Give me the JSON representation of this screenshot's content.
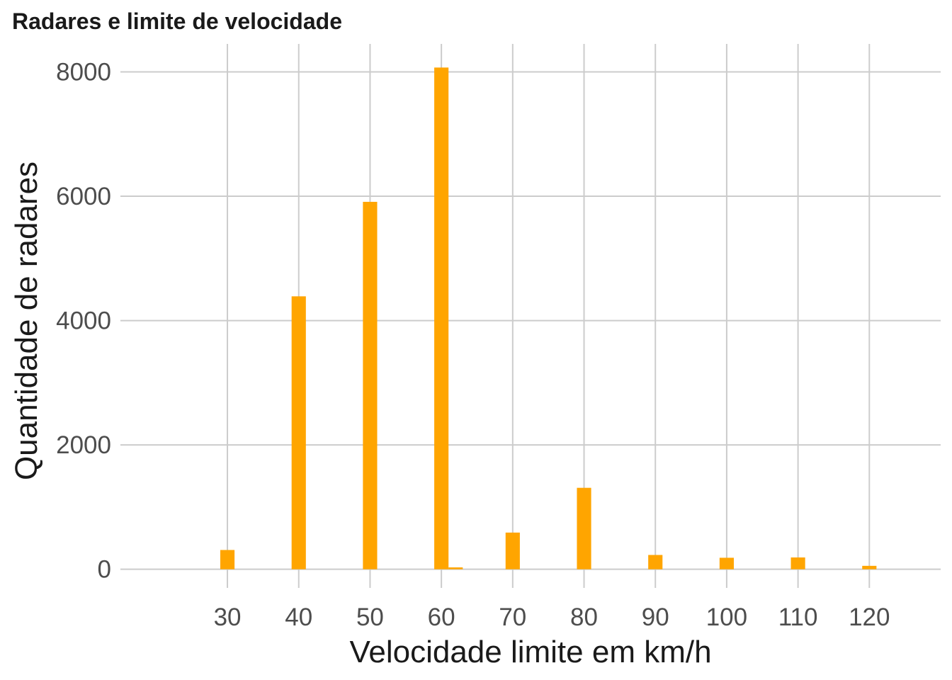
{
  "chart_data": {
    "type": "bar",
    "title": "Radares e limite de velocidade",
    "xlabel": "Velocidade limite em km/h",
    "ylabel": "Quantidade de radares",
    "x_ticks": [
      30,
      40,
      50,
      60,
      70,
      80,
      90,
      100,
      110,
      120
    ],
    "y_ticks": [
      0,
      2000,
      4000,
      6000,
      8000
    ],
    "xlim": [
      15,
      130
    ],
    "ylim": [
      -300,
      8450
    ],
    "bar_width": 2,
    "bar_color": "#FFA500",
    "grid_color": "#cccccc",
    "grid": true,
    "legend": "none",
    "x": [
      30,
      40,
      50,
      60,
      62,
      70,
      80,
      90,
      100,
      110,
      120
    ],
    "values": [
      310,
      4390,
      5910,
      8070,
      30,
      590,
      1310,
      230,
      185,
      190,
      55
    ]
  }
}
